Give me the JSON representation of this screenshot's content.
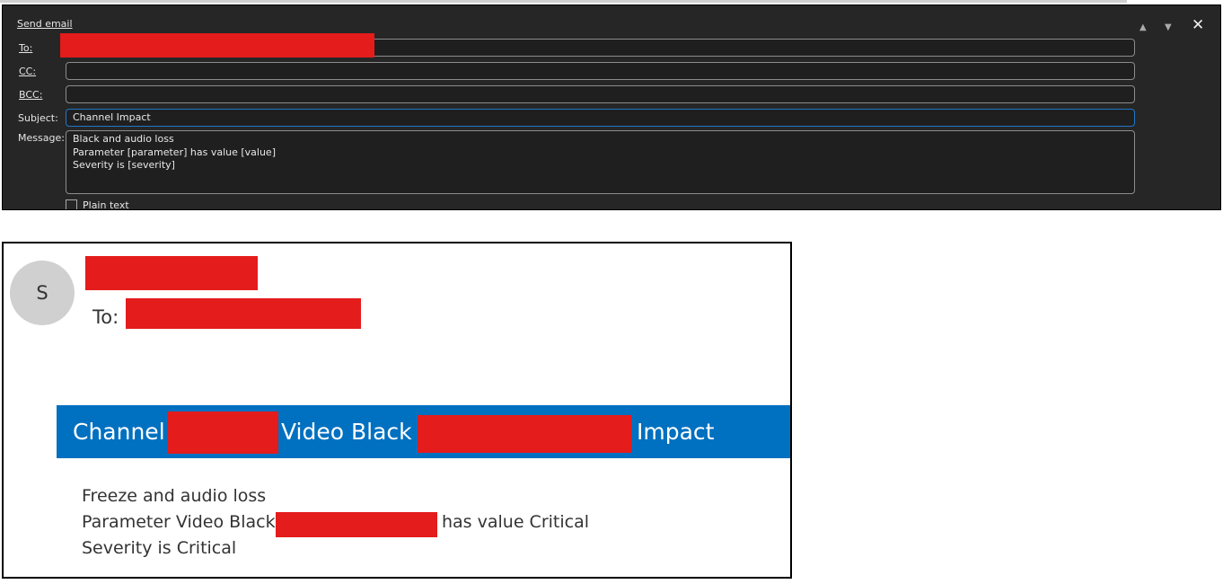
{
  "dialog": {
    "title": "Send email",
    "to_label": "To:",
    "cc_label": "CC:",
    "bcc_label": "BCC:",
    "subject_label": "Subject:",
    "message_label": "Message:",
    "to_value": "",
    "cc_value": "",
    "bcc_value": "",
    "subject_value": "Channel  Impact",
    "message_value": "Black and audio loss\nParameter [parameter] has value [value]\nSeverity is [severity]",
    "plain_text_label": "Plain text",
    "plain_text_checked": false,
    "icons": [
      "triangle-up-icon",
      "triangle-down-icon",
      "close-icon"
    ]
  },
  "received": {
    "avatar_initial": "S",
    "to_label": "To:",
    "banner": {
      "part1": "Channel",
      "part2": "Video Black",
      "part3": "Impact",
      "color": "#0070c0"
    },
    "body": {
      "line1": "Freeze and audio loss",
      "line2a": "Parameter Video Black",
      "line2b": "has value Critical",
      "line3": "Severity is Critical"
    }
  },
  "colors": {
    "redaction": "#e41c1c",
    "dialog_bg": "#262626",
    "focus": "#1f78c8"
  }
}
